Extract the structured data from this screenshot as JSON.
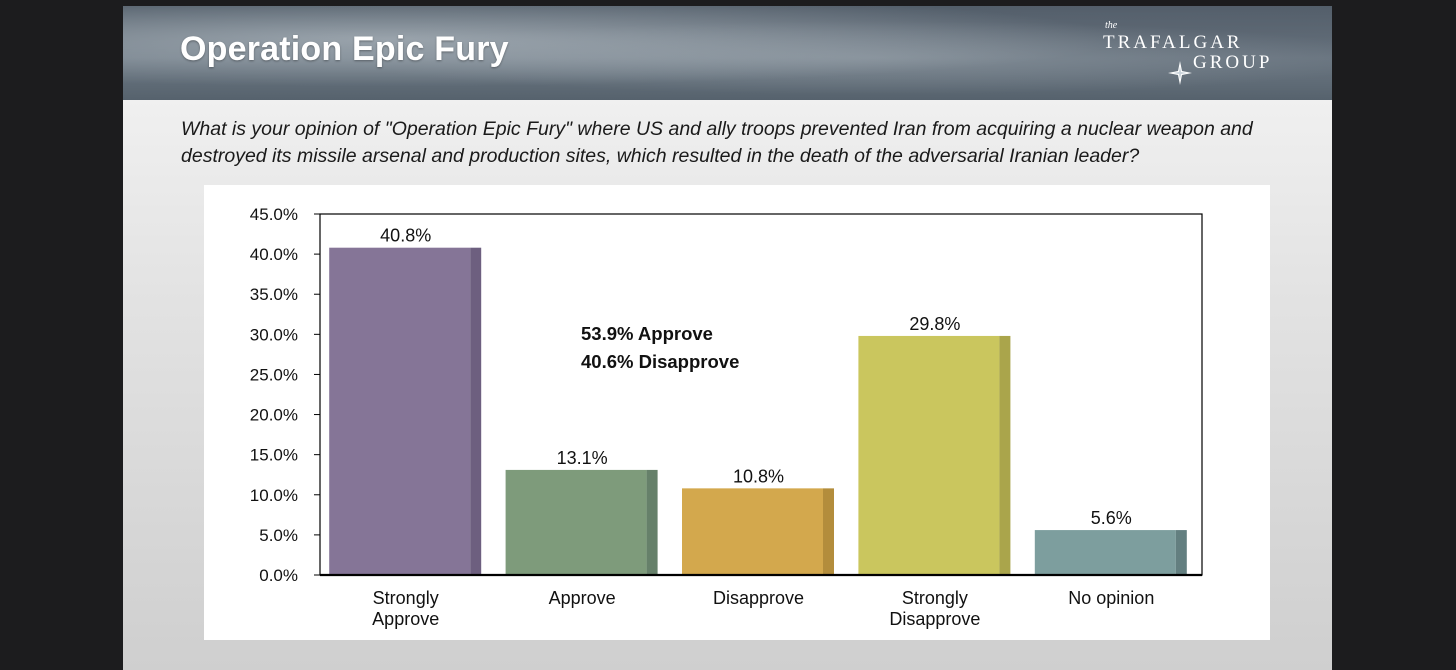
{
  "slide": {
    "title": "Operation Epic Fury",
    "logo": {
      "the": "the",
      "line1": "TRAFAL",
      "line1_end": "GAR",
      "line2": "ROUP",
      "line2_start": "G"
    },
    "question": "What is your opinion of \"Operation Epic Fury\" where US and ally troops prevented Iran from acquiring a nuclear weapon and destroyed its missile arsenal and production sites, which resulted in the death of the adversarial Iranian leader?"
  },
  "chart_data": {
    "type": "bar",
    "title": "",
    "xlabel": "",
    "ylabel": "",
    "categories": [
      [
        "Strongly",
        "Approve"
      ],
      [
        "Approve"
      ],
      [
        "Disapprove"
      ],
      [
        "Strongly",
        "Disapprove"
      ],
      [
        "No opinion"
      ]
    ],
    "values": [
      40.8,
      13.1,
      10.8,
      29.8,
      5.6
    ],
    "value_labels": [
      "40.8%",
      "13.1%",
      "10.8%",
      "29.8%",
      "5.6%"
    ],
    "colors": [
      "#857597",
      "#7e9b7b",
      "#d3a84d",
      "#cac65e",
      "#7d9e9e"
    ],
    "shade_colors": [
      "#6d5f7f",
      "#66806a",
      "#b38d3c",
      "#aaa54b",
      "#637f80"
    ],
    "ylim": [
      0,
      45
    ],
    "yticks": [
      0,
      5,
      10,
      15,
      20,
      25,
      30,
      35,
      40,
      45
    ],
    "ytick_labels": [
      "0.0%",
      "5.0%",
      "10.0%",
      "15.0%",
      "20.0%",
      "25.0%",
      "30.0%",
      "35.0%",
      "40.0%",
      "45.0%"
    ],
    "grid": false,
    "legend": "none",
    "annotations": [
      "53.9% Approve",
      "40.6% Disapprove"
    ]
  }
}
